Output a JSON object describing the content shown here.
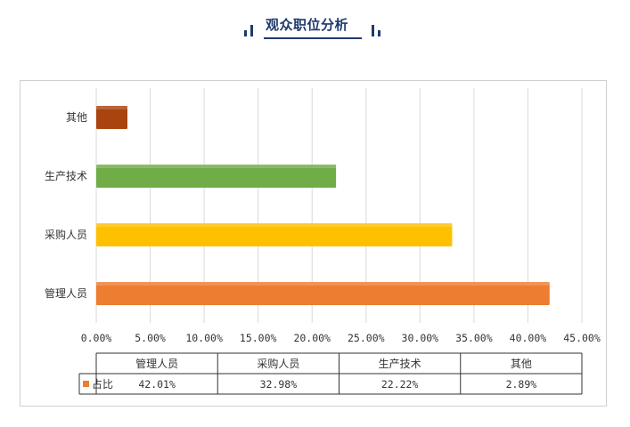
{
  "header": {
    "title": "观众职位分析"
  },
  "colors": {
    "title": "#1f3a6e",
    "legend_marker": "#ed7d31"
  },
  "chart_data": {
    "type": "bar",
    "orientation": "horizontal",
    "title": "",
    "xlabel": "",
    "ylabel": "",
    "categories": [
      "管理人员",
      "采购人员",
      "生产技术",
      "其他"
    ],
    "series": [
      {
        "name": "占比",
        "values": [
          42.01,
          32.98,
          22.22,
          2.89
        ],
        "value_labels": [
          "42.01%",
          "32.98%",
          "22.22%",
          "2.89%"
        ]
      }
    ],
    "bar_colors": [
      "#ed7d31",
      "#ffc000",
      "#70ad47",
      "#a9440e"
    ],
    "xlim": [
      0,
      45
    ],
    "x_ticks": [
      0,
      5,
      10,
      15,
      20,
      25,
      30,
      35,
      40,
      45
    ],
    "x_tick_labels": [
      "0.00%",
      "5.00%",
      "10.00%",
      "15.00%",
      "20.00%",
      "25.00%",
      "30.00%",
      "35.00%",
      "40.00%",
      "45.00%"
    ],
    "grid": true,
    "data_table": true
  }
}
